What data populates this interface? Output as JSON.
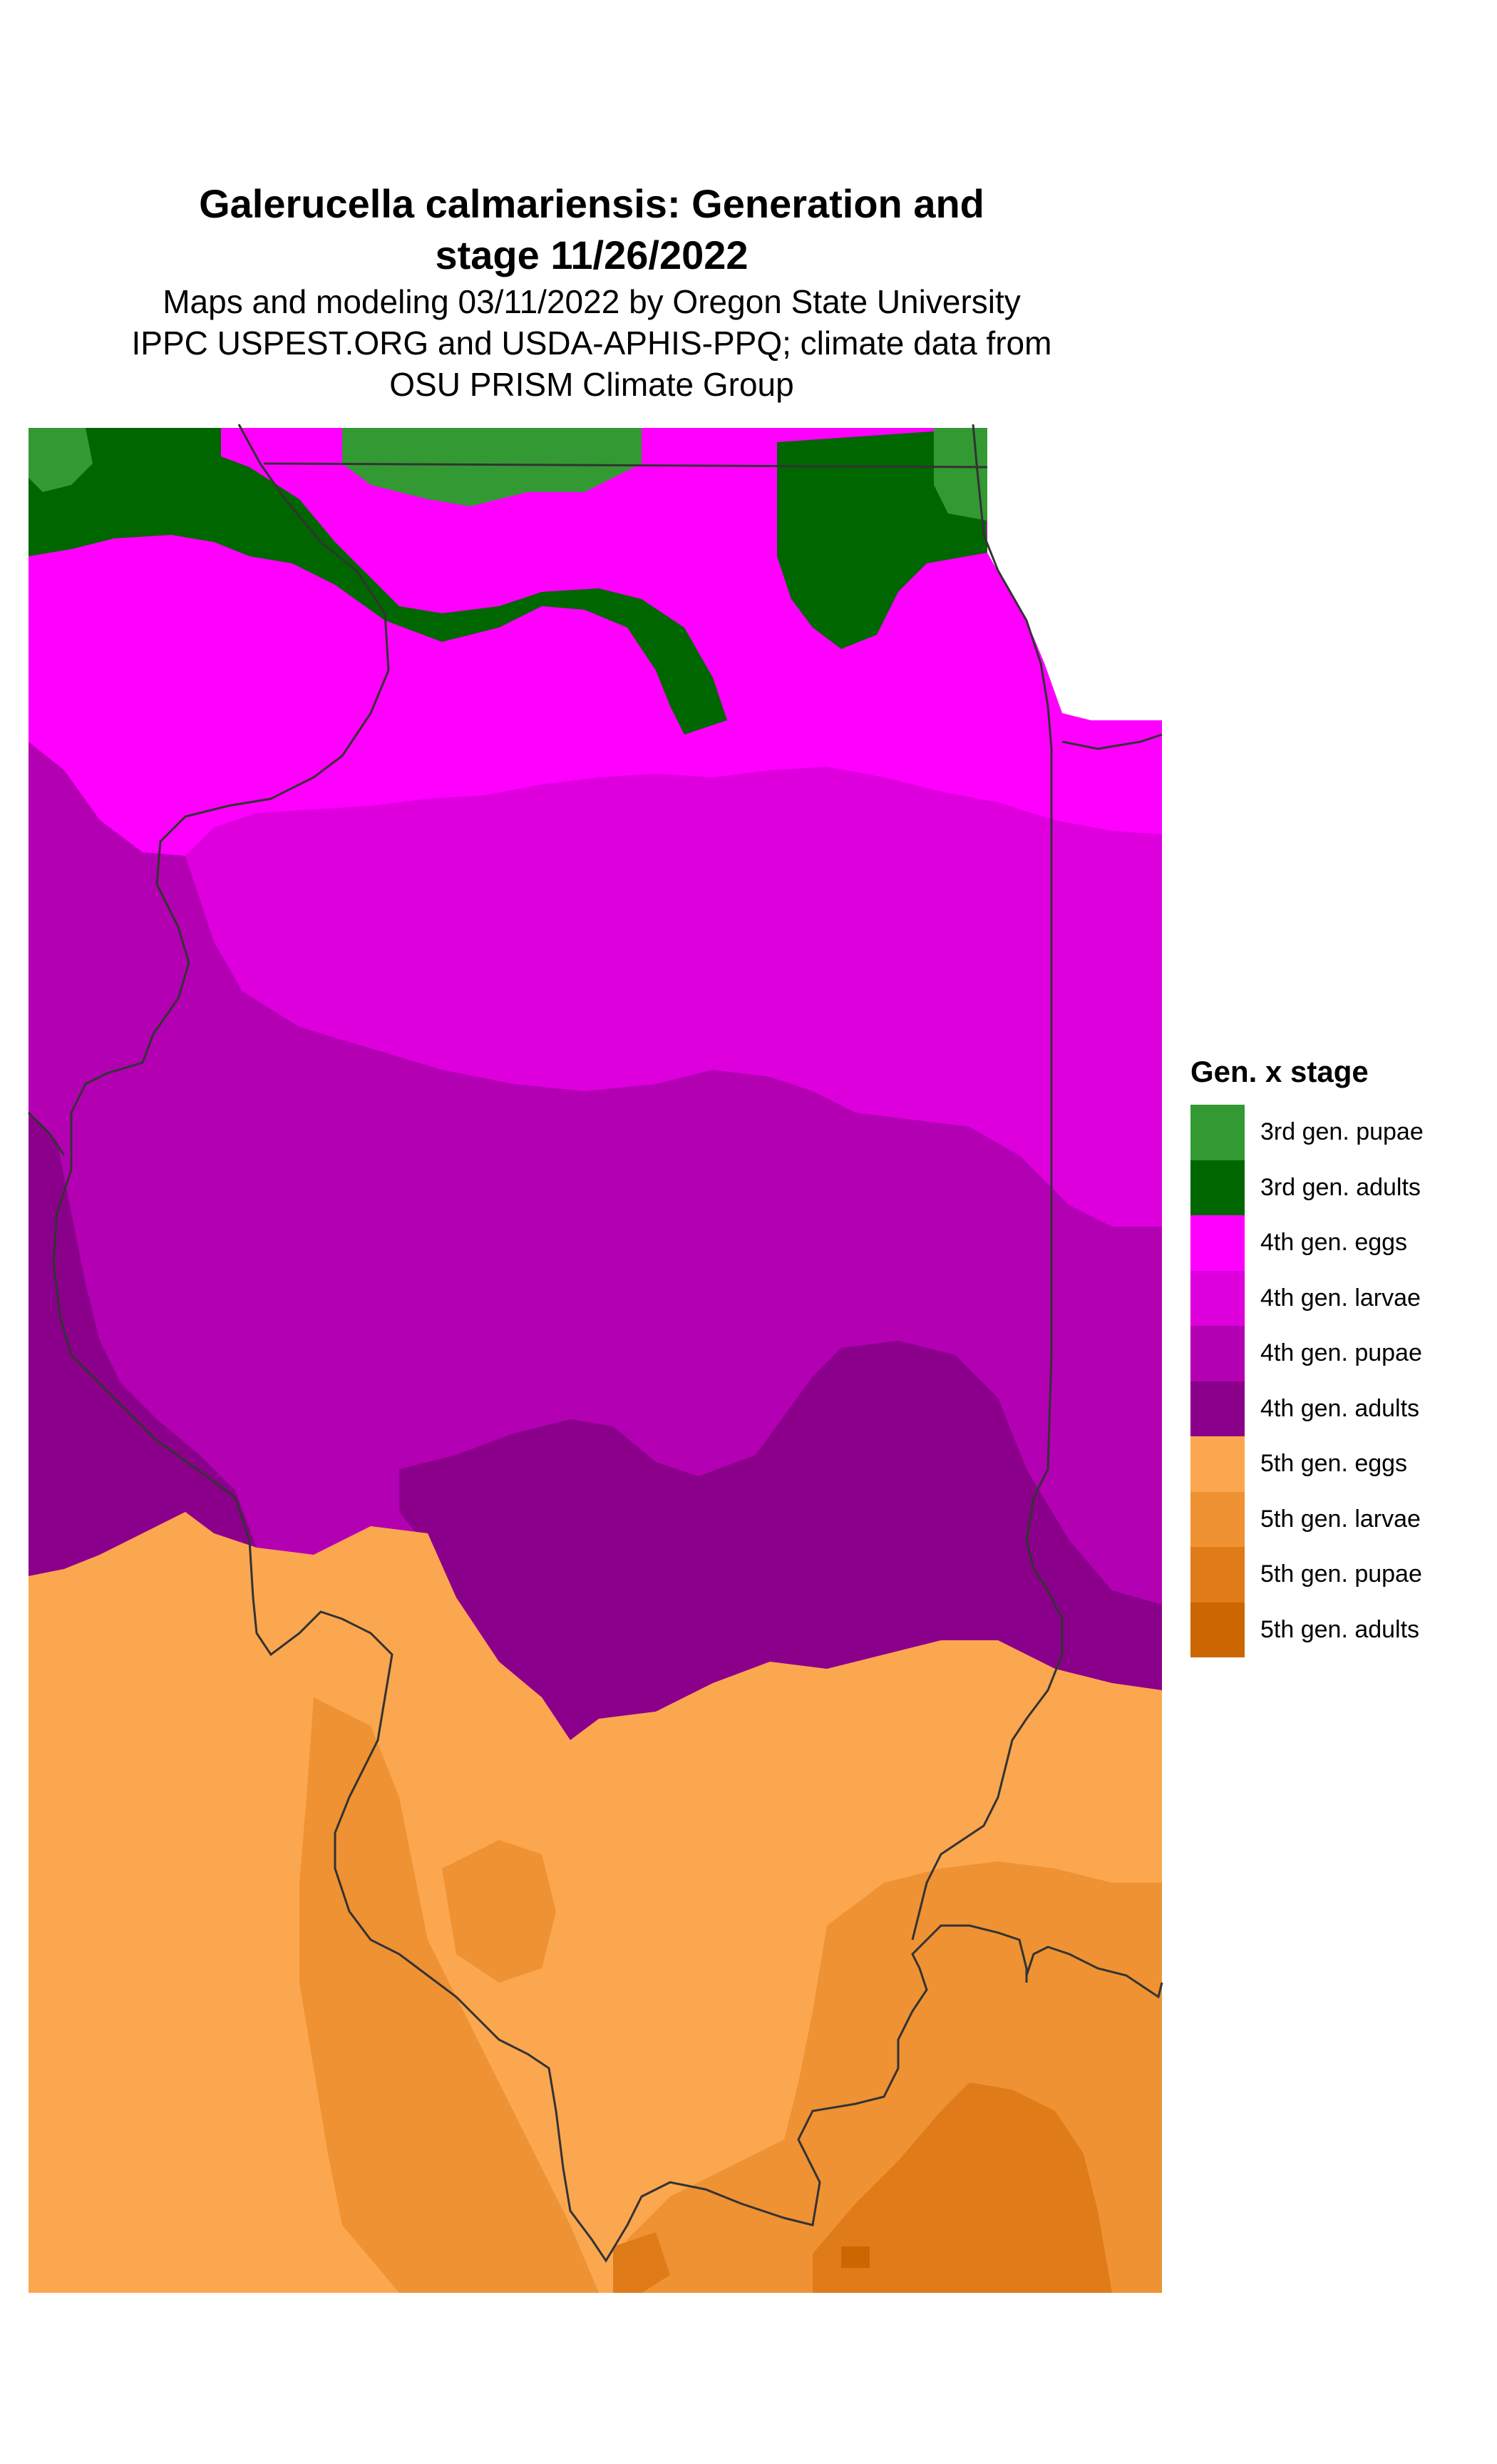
{
  "title": {
    "line1": "Galerucella calmariensis: Generation and",
    "line2": "stage 11/26/2022",
    "subtitle1": "Maps and modeling 03/11/2022 by Oregon State University",
    "subtitle2": "IPPC USPEST.ORG and USDA-APHIS-PPQ; climate data from",
    "subtitle3": "OSU PRISM Climate Group"
  },
  "legend": {
    "title": "Gen. x stage",
    "items": [
      {
        "label": "3rd gen. pupae",
        "color": "#339933"
      },
      {
        "label": "3rd gen. adults",
        "color": "#006600"
      },
      {
        "label": "4th gen. eggs",
        "color": "#ff00ff"
      },
      {
        "label": "4th gen. larvae",
        "color": "#dd00dd"
      },
      {
        "label": "4th gen. pupae",
        "color": "#b300b3"
      },
      {
        "label": "4th gen. adults",
        "color": "#8b008b"
      },
      {
        "label": "5th gen. eggs",
        "color": "#fba74f"
      },
      {
        "label": "5th gen. larvae",
        "color": "#ef9233"
      },
      {
        "label": "5th gen. pupae",
        "color": "#e07b1a"
      },
      {
        "label": "5th gen. adults",
        "color": "#cc6600"
      }
    ]
  }
}
